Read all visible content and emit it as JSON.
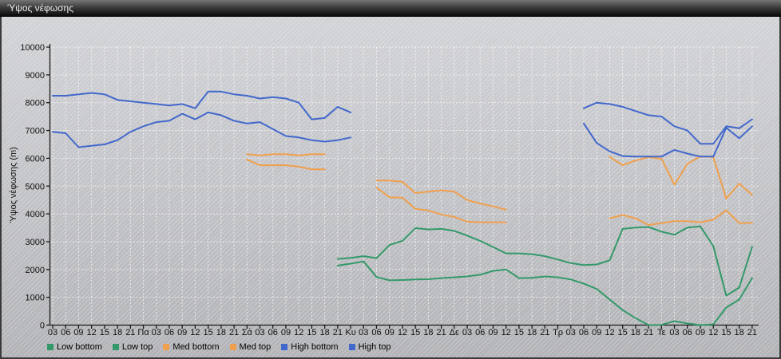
{
  "window": {
    "title": "Ύψος νέφωσης"
  },
  "chart_data": {
    "type": "line",
    "title": "Ύψος νέφωσης",
    "xlabel": "",
    "ylabel": "Ύψος νέφωσης (m)",
    "ylim": [
      0,
      10000
    ],
    "grid": true,
    "legend_position": "bottom-left",
    "yticks": [
      0,
      1000,
      2000,
      3000,
      4000,
      5000,
      6000,
      7000,
      8000,
      9000,
      10000
    ],
    "x_labels": [
      "03",
      "06",
      "09",
      "12",
      "15",
      "18",
      "21",
      "Πα",
      "03",
      "06",
      "09",
      "12",
      "15",
      "18",
      "21",
      "Σά",
      "03",
      "06",
      "09",
      "12",
      "15",
      "18",
      "21",
      "Κυ",
      "03",
      "06",
      "09",
      "12",
      "15",
      "18",
      "21",
      "Δε",
      "03",
      "06",
      "09",
      "12",
      "15",
      "18",
      "21",
      "Τρ",
      "03",
      "06",
      "09",
      "12",
      "15",
      "18",
      "21",
      "Τε",
      "03",
      "06",
      "09",
      "12",
      "15",
      "18",
      "21"
    ],
    "series": [
      {
        "name": "Low bottom",
        "color": "#33996A",
        "values": [
          null,
          null,
          null,
          null,
          null,
          null,
          null,
          null,
          null,
          null,
          null,
          null,
          null,
          null,
          null,
          null,
          null,
          null,
          null,
          null,
          null,
          null,
          2140,
          2210,
          2290,
          1730,
          1610,
          1620,
          1640,
          1650,
          1690,
          1720,
          1750,
          1810,
          1950,
          2000,
          1690,
          1700,
          1750,
          1720,
          1640,
          1490,
          1300,
          920,
          540,
          250,
          0,
          10,
          140,
          60,
          0,
          30,
          630,
          920,
          1690
        ]
      },
      {
        "name": "Low top",
        "color": "#33996A",
        "values": [
          null,
          null,
          null,
          null,
          null,
          null,
          null,
          null,
          null,
          null,
          null,
          null,
          null,
          null,
          null,
          null,
          null,
          null,
          null,
          null,
          null,
          null,
          2380,
          2420,
          2480,
          2410,
          2880,
          3030,
          3490,
          3440,
          3460,
          3390,
          3220,
          3030,
          2810,
          2580,
          2580,
          2550,
          2480,
          2360,
          2230,
          2160,
          2180,
          2330,
          3460,
          3510,
          3530,
          3360,
          3250,
          3510,
          3550,
          2840,
          1060,
          1350,
          2820
        ]
      },
      {
        "name": "Med bottom",
        "color": "#F0A04C",
        "values": [
          null,
          null,
          null,
          null,
          null,
          null,
          null,
          null,
          null,
          null,
          null,
          null,
          null,
          null,
          null,
          5950,
          5750,
          5750,
          5750,
          5700,
          5600,
          5600,
          null,
          null,
          null,
          4950,
          4600,
          4580,
          4180,
          4120,
          3980,
          3890,
          3720,
          3700,
          3700,
          3700,
          null,
          null,
          null,
          null,
          null,
          null,
          null,
          3840,
          3960,
          3840,
          3600,
          3670,
          3740,
          3740,
          3700,
          3790,
          4130,
          3670,
          3680
        ]
      },
      {
        "name": "Med top",
        "color": "#F0A04C",
        "values": [
          null,
          null,
          null,
          null,
          null,
          null,
          null,
          null,
          null,
          null,
          null,
          null,
          null,
          null,
          null,
          6150,
          6100,
          6150,
          6150,
          6100,
          6150,
          6150,
          null,
          null,
          null,
          5200,
          5200,
          5150,
          4750,
          4800,
          4850,
          4800,
          4500,
          4370,
          4270,
          4150,
          null,
          null,
          null,
          null,
          null,
          null,
          null,
          6050,
          5750,
          5920,
          6040,
          5980,
          5050,
          5800,
          6070,
          6040,
          4550,
          5090,
          4680
        ]
      },
      {
        "name": "High bottom",
        "color": "#4268CB",
        "values": [
          6950,
          6900,
          6400,
          6450,
          6500,
          6650,
          6950,
          7150,
          7300,
          7350,
          7600,
          7400,
          7650,
          7550,
          7350,
          7250,
          7300,
          7050,
          6800,
          6750,
          6650,
          6600,
          6650,
          6750,
          null,
          null,
          null,
          null,
          null,
          null,
          null,
          null,
          null,
          null,
          null,
          null,
          null,
          null,
          null,
          null,
          null,
          7250,
          6550,
          6250,
          6080,
          6060,
          6060,
          6060,
          6300,
          6170,
          6060,
          6060,
          7100,
          6720,
          7150
        ]
      },
      {
        "name": "High top",
        "color": "#4268CB",
        "values": [
          8250,
          8250,
          8300,
          8350,
          8300,
          8100,
          8050,
          8000,
          7950,
          7900,
          7950,
          7800,
          8400,
          8400,
          8300,
          8250,
          8150,
          8200,
          8150,
          8000,
          7400,
          7450,
          7850,
          7650,
          null,
          null,
          null,
          null,
          null,
          null,
          null,
          null,
          null,
          null,
          null,
          null,
          null,
          null,
          null,
          null,
          null,
          7800,
          8000,
          7950,
          7850,
          7700,
          7550,
          7500,
          7150,
          7000,
          6520,
          6520,
          7150,
          7080,
          7400
        ]
      }
    ]
  }
}
